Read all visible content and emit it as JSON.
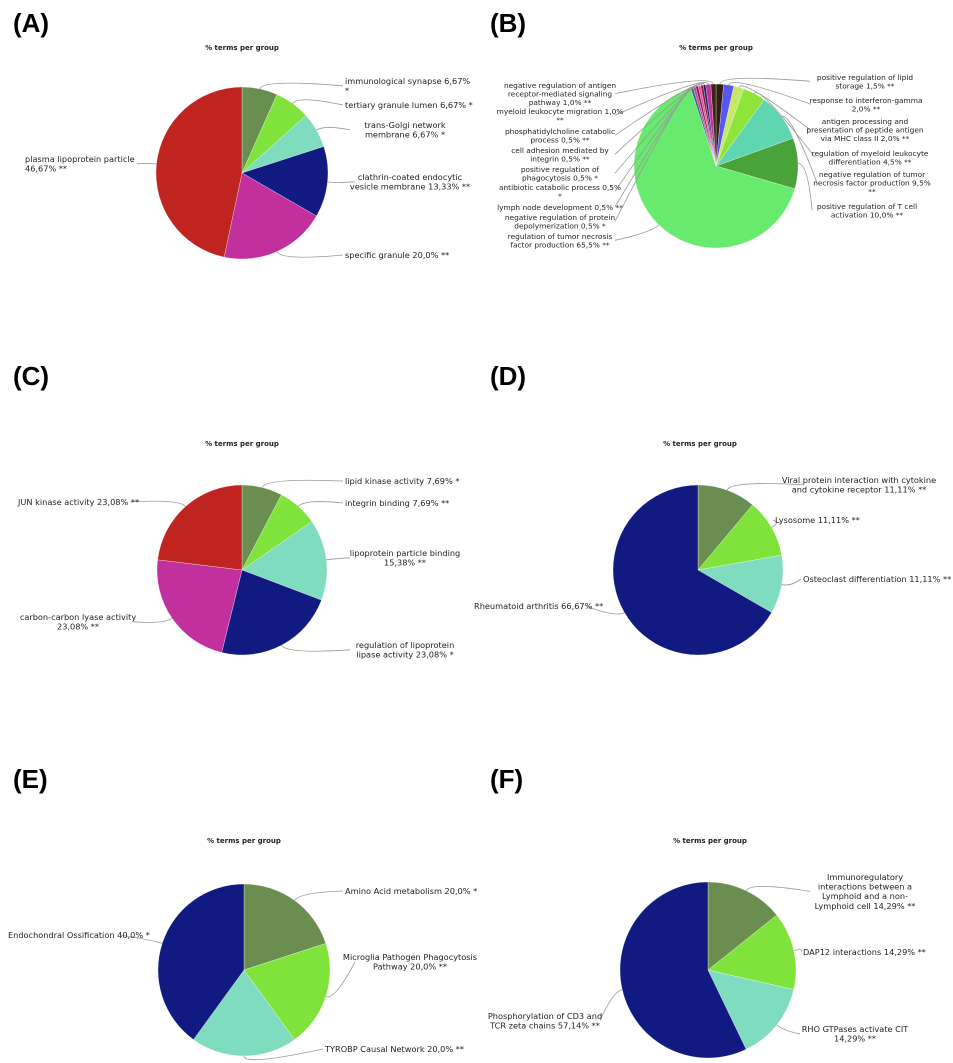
{
  "chart_data": [
    {
      "type": "pie",
      "panel": "(A)",
      "title": "% terms per group",
      "slices": [
        {
          "label": "immunological synapse 6,67% *",
          "value": 6.67,
          "color": "#6a8e50"
        },
        {
          "label": "tertiary granule lumen 6,67% *",
          "value": 6.67,
          "color": "#7fe33c"
        },
        {
          "label": "trans-Golgi network membrane 6,67% *",
          "value": 6.67,
          "color": "#7fdcbf"
        },
        {
          "label": "clathrin-coated endocytic vesicle membrane 13,33% **",
          "value": 13.33,
          "color": "#111a80"
        },
        {
          "label": "specific granule 20,0% **",
          "value": 20.0,
          "color": "#c2309e"
        },
        {
          "label": "plasma lipoprotein particle 46,67% **",
          "value": 46.67,
          "color": "#bf2420"
        }
      ]
    },
    {
      "type": "pie",
      "panel": "(B)",
      "title": "% terms per group",
      "slices": [
        {
          "label": "positive regulation of lipid storage 1,5% **",
          "value": 1.5,
          "color": "#2e1f12"
        },
        {
          "label": "response to interferon-gamma 2,0% **",
          "value": 2.0,
          "color": "#5a55f0"
        },
        {
          "label": "antigen processing and presentation of peptide antigen via MHC class II 2,0% **",
          "value": 2.0,
          "color": "#c7e66a"
        },
        {
          "label": "regulation of myeloid leukocyte differentiation 4,5% **",
          "value": 4.5,
          "color": "#8fe43a"
        },
        {
          "label": "negative regulation of tumor necrosis factor production 9,5% **",
          "value": 9.5,
          "color": "#5fd6b0"
        },
        {
          "label": "positive regulation of T cell activation 10,0% **",
          "value": 10.0,
          "color": "#4aa23a"
        },
        {
          "label": "regulation of tumor necrosis factor production 65,5% **",
          "value": 65.5,
          "color": "#68ea6e"
        },
        {
          "label": "negative regulation of protein depolymerization 0,5% *",
          "value": 0.5,
          "color": "#2a6a8a"
        },
        {
          "label": "lymph node development 0,5% **",
          "value": 0.5,
          "color": "#d53f9c"
        },
        {
          "label": "antibiotic catabolic process 0,5% *",
          "value": 0.5,
          "color": "#7b1f4c"
        },
        {
          "label": "positive regulation of phagocytosis 0,5% *",
          "value": 0.5,
          "color": "#e04faa"
        },
        {
          "label": "cell adhesion mediated by integrin 0,5% **",
          "value": 0.5,
          "color": "#8a1a3a"
        },
        {
          "label": "phosphatidylcholine catabolic process 0,5% **",
          "value": 0.5,
          "color": "#1a1f6a"
        },
        {
          "label": "myeloid leukocyte migration 1,0% **",
          "value": 1.0,
          "color": "#c2309e"
        },
        {
          "label": "negative regulation of antigen receptor-mediated signaling pathway 1,0% **",
          "value": 1.0,
          "color": "#3b2410"
        }
      ]
    },
    {
      "type": "pie",
      "panel": "(C)",
      "title": "% terms per group",
      "slices": [
        {
          "label": "lipid kinase activity 7,69% *",
          "value": 7.69,
          "color": "#6a8e50"
        },
        {
          "label": "integrin binding 7,69% **",
          "value": 7.69,
          "color": "#7fe33c"
        },
        {
          "label": "lipoprotein particle binding 15,38% **",
          "value": 15.38,
          "color": "#7fdcbf"
        },
        {
          "label": "regulation of lipoprotein lipase activity 23,08% *",
          "value": 23.08,
          "color": "#111a80"
        },
        {
          "label": "carbon-carbon lyase activity 23,08% **",
          "value": 23.08,
          "color": "#c2309e"
        },
        {
          "label": "JUN kinase activity 23,08% **",
          "value": 23.08,
          "color": "#bf2420"
        }
      ]
    },
    {
      "type": "pie",
      "panel": "(D)",
      "title": "% terms per group",
      "slices": [
        {
          "label": "Viral protein interaction with cytokine and cytokine receptor 11,11% **",
          "value": 11.11,
          "color": "#6a8e50"
        },
        {
          "label": "Lysosome 11,11% **",
          "value": 11.11,
          "color": "#7fe33c"
        },
        {
          "label": "Osteoclast differentiation 11,11% **",
          "value": 11.11,
          "color": "#7fdcbf"
        },
        {
          "label": "Rheumatoid arthritis 66,67% **",
          "value": 66.67,
          "color": "#111a80"
        }
      ]
    },
    {
      "type": "pie",
      "panel": "(E)",
      "title": "% terms per group",
      "slices": [
        {
          "label": "Amino Acid metabolism 20,0% *",
          "value": 20.0,
          "color": "#6a8e50"
        },
        {
          "label": "Microglia Pathogen Phagocytosis Pathway 20,0% **",
          "value": 20.0,
          "color": "#7fe33c"
        },
        {
          "label": "TYROBP Causal Network 20,0% **",
          "value": 20.0,
          "color": "#7fdcbf"
        },
        {
          "label": "Endochondral Ossification 40,0% *",
          "value": 40.0,
          "color": "#111a80"
        }
      ]
    },
    {
      "type": "pie",
      "panel": "(F)",
      "title": "% terms per group",
      "slices": [
        {
          "label": "Immunoregulatory interactions between a Lymphoid and a non-Lymphoid cell 14,29% **",
          "value": 14.29,
          "color": "#6a8e50"
        },
        {
          "label": "DAP12 interactions 14,29% **",
          "value": 14.29,
          "color": "#7fe33c"
        },
        {
          "label": "RHO GTPases activate CIT 14,29% **",
          "value": 14.29,
          "color": "#7fdcbf"
        },
        {
          "label": "Phosphorylation of CD3 and TCR zeta chains 57,14% **",
          "value": 57.14,
          "color": "#111a80"
        }
      ]
    }
  ]
}
